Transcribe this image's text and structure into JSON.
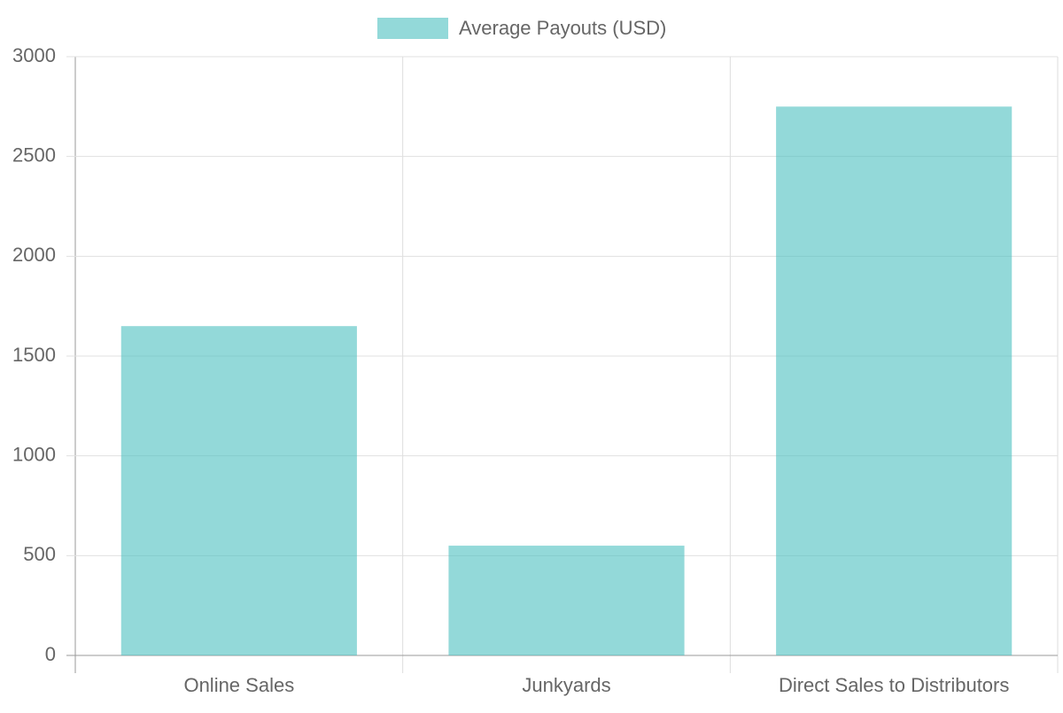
{
  "chart_data": {
    "type": "bar",
    "legend": "Average Payouts (USD)",
    "categories": [
      "Online Sales",
      "Junkyards",
      "Direct Sales to Distributors"
    ],
    "series": [
      {
        "name": "Average Payouts (USD)",
        "color": "rgba(75, 192, 192, 0.6)",
        "values": [
          1650,
          550,
          2750
        ]
      }
    ],
    "ylim": [
      0,
      3000
    ],
    "yticks": [
      0,
      500,
      1000,
      1500,
      2000,
      2500,
      3000
    ],
    "grid": true,
    "legend_position": "top"
  }
}
